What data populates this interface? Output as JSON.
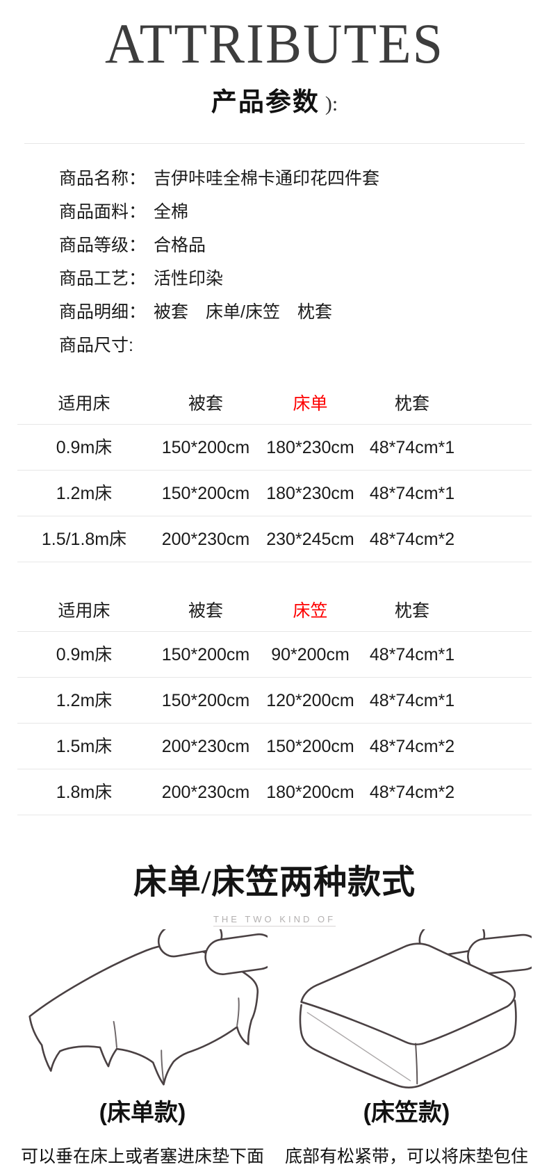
{
  "header": {
    "title_en": "ATTRIBUTES",
    "title_cn": "产品参数",
    "title_suffix": "):"
  },
  "attributes": [
    {
      "label": "商品名称：",
      "value": "吉伊咔哇全棉卡通印花四件套"
    },
    {
      "label": "商品面料：",
      "value": "全棉"
    },
    {
      "label": "商品等级：",
      "value": "合格品"
    },
    {
      "label": "商品工艺：",
      "value": "活性印染"
    },
    {
      "label": "商品明细：",
      "value": "被套　床单/床笠　枕套"
    },
    {
      "label": "商品尺寸:",
      "value": ""
    }
  ],
  "size_tables": [
    {
      "headers": [
        "适用床",
        "被套",
        "床单",
        "枕套"
      ],
      "highlight_column": 2,
      "rows": [
        [
          "0.9m床",
          "150*200cm",
          "180*230cm",
          "48*74cm*1"
        ],
        [
          "1.2m床",
          "150*200cm",
          "180*230cm",
          "48*74cm*1"
        ],
        [
          "1.5/1.8m床",
          "200*230cm",
          "230*245cm",
          "48*74cm*2"
        ]
      ]
    },
    {
      "headers": [
        "适用床",
        "被套",
        "床笠",
        "枕套"
      ],
      "highlight_column": 2,
      "rows": [
        [
          "0.9m床",
          "150*200cm",
          "90*200cm",
          "48*74cm*1"
        ],
        [
          "1.2m床",
          "150*200cm",
          "120*200cm",
          "48*74cm*1"
        ],
        [
          "1.5m床",
          "200*230cm",
          "150*200cm",
          "48*74cm*2"
        ],
        [
          "1.8m床",
          "200*230cm",
          "180*200cm",
          "48*74cm*2"
        ]
      ]
    }
  ],
  "styles_section": {
    "heading": "床单/床笠两种款式",
    "subheading": "THE TWO KIND OF",
    "items": [
      {
        "name": "(床单款)",
        "caption": "可以垂在床上或者塞进床垫下面",
        "illustration": "flat-sheet-bed-sketch"
      },
      {
        "name": "(床笠款)",
        "caption": "底部有松紧带，可以将床垫包住",
        "illustration": "fitted-sheet-bed-sketch"
      }
    ]
  },
  "colors": {
    "text": "#1a1a1a",
    "title": "#3d3d3d",
    "highlight": "#fe0101",
    "divider": "#e7e7e7",
    "subheading": "#b3b0b0",
    "sketch": "#4a4143"
  }
}
